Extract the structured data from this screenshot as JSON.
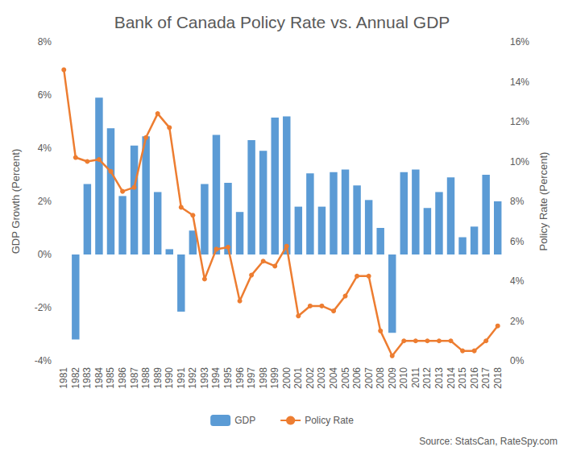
{
  "chart_data": {
    "type": "bar",
    "title": "Bank of Canada Policy Rate vs. Annual GDP",
    "ylabel": "GDP Growth (Percent)",
    "y2label": "Policy Rate (Percent)",
    "annotation": "Source: StatsCan, RateSpy.com",
    "categories": [
      "1981",
      "1982",
      "1983",
      "1984",
      "1985",
      "1986",
      "1987",
      "1988",
      "1989",
      "1990",
      "1991",
      "1992",
      "1993",
      "1994",
      "1995",
      "1996",
      "1997",
      "1998",
      "1999",
      "2000",
      "2001",
      "2002",
      "2003",
      "2004",
      "2005",
      "2006",
      "2007",
      "2008",
      "2009",
      "2010",
      "2011",
      "2012",
      "2013",
      "2014",
      "2015",
      "2016",
      "2017",
      "2018"
    ],
    "series": [
      {
        "name": "GDP",
        "type": "bar",
        "axis": "y",
        "color": "#5b9bd5",
        "values": [
          null,
          -3.2,
          2.65,
          5.9,
          4.75,
          2.2,
          4.1,
          4.45,
          2.35,
          0.2,
          -2.15,
          0.9,
          2.65,
          4.5,
          2.7,
          1.6,
          4.3,
          3.9,
          5.15,
          5.2,
          1.8,
          3.05,
          1.8,
          3.1,
          3.2,
          2.6,
          2.05,
          1.0,
          -2.95,
          3.1,
          3.2,
          1.75,
          2.35,
          2.9,
          0.65,
          1.05,
          3.0,
          2.0
        ]
      },
      {
        "name": "Policy Rate",
        "type": "line",
        "axis": "y2",
        "color": "#ed7d31",
        "marker": "circle",
        "line_style": "solid",
        "values": [
          14.6,
          10.2,
          10.0,
          10.1,
          9.5,
          8.5,
          8.7,
          11.2,
          12.4,
          11.7,
          7.7,
          7.3,
          4.1,
          5.6,
          5.7,
          3.0,
          4.3,
          5.0,
          4.75,
          5.75,
          2.25,
          2.75,
          2.75,
          2.5,
          3.25,
          4.25,
          4.25,
          1.5,
          0.25,
          1.0,
          1.0,
          1.0,
          1.0,
          1.0,
          0.5,
          0.5,
          1.0,
          1.75
        ]
      }
    ],
    "ylim": [
      -4,
      8
    ],
    "yticks": [
      {
        "value": -4,
        "label": "-4%"
      },
      {
        "value": -2,
        "label": "-2%"
      },
      {
        "value": 0,
        "label": "0%"
      },
      {
        "value": 2,
        "label": "2%"
      },
      {
        "value": 4,
        "label": "4%"
      },
      {
        "value": 6,
        "label": "6%"
      },
      {
        "value": 8,
        "label": "8%"
      }
    ],
    "y2lim": [
      0,
      16
    ],
    "y2ticks": [
      {
        "value": 0,
        "label": "0%"
      },
      {
        "value": 2,
        "label": "2%"
      },
      {
        "value": 4,
        "label": "4%"
      },
      {
        "value": 6,
        "label": "6%"
      },
      {
        "value": 8,
        "label": "8%"
      },
      {
        "value": 10,
        "label": "10%"
      },
      {
        "value": 12,
        "label": "12%"
      },
      {
        "value": 14,
        "label": "14%"
      },
      {
        "value": 16,
        "label": "16%"
      }
    ],
    "grid": false,
    "legend": "bottom"
  }
}
